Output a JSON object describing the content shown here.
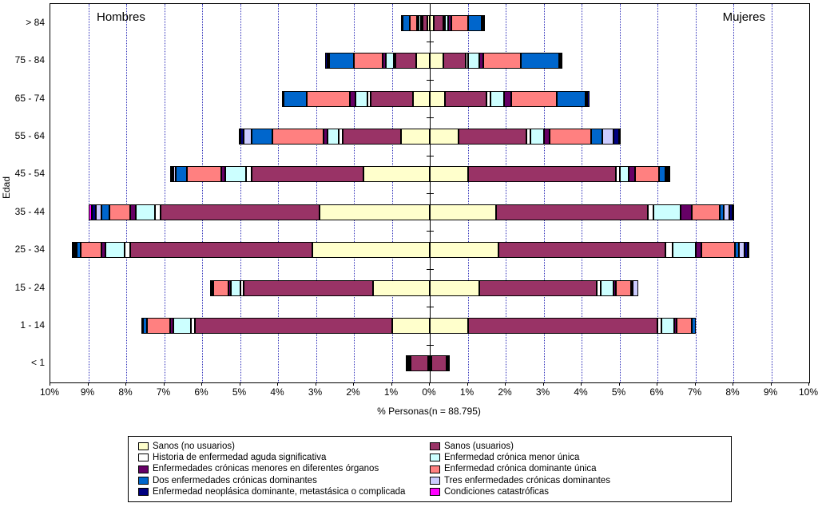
{
  "chart_data": {
    "type": "bar",
    "subtype": "population-pyramid-stacked-horizontal",
    "title": "",
    "xlabel": "% Personas(n = 88.795)",
    "ylabel": "Edad",
    "left_group": "Hombres",
    "right_group": "Mujeres",
    "x_axis": {
      "min_pct": 0,
      "max_pct": 10,
      "tick_step_pct": 1,
      "tick_labels": [
        "10%",
        "9%",
        "8%",
        "7%",
        "6%",
        "5%",
        "4%",
        "3%",
        "2%",
        "1%",
        "0%",
        "1%",
        "2%",
        "3%",
        "4%",
        "5%",
        "6%",
        "7%",
        "8%",
        "9%",
        "10%"
      ]
    },
    "age_groups": [
      "> 84",
      "75 - 84",
      "65 - 74",
      "55 - 64",
      "45 - 54",
      "35 - 44",
      "25 - 34",
      "15 - 24",
      "1 - 14",
      "< 1"
    ],
    "values_unit": "percent of persons (estimated from chart)",
    "grid": {
      "vertical_gridlines": "dotted",
      "gridline_color": "#3333bb",
      "center_axis_color": "#000000"
    },
    "series": [
      {
        "name": "Sanos (no usuarios)",
        "color": "#FFFFCC",
        "hombres": [
          0.07,
          0.35,
          0.45,
          0.75,
          1.75,
          2.9,
          3.1,
          1.5,
          1.0,
          0.05
        ],
        "mujeres": [
          0.1,
          0.35,
          0.4,
          0.75,
          1.0,
          1.75,
          1.8,
          1.3,
          1.0,
          0.05
        ]
      },
      {
        "name": "Sanos (usuarios)",
        "color": "#993366",
        "hombres": [
          0.13,
          0.55,
          1.1,
          1.55,
          2.95,
          4.2,
          4.8,
          3.4,
          5.2,
          0.45
        ],
        "mujeres": [
          0.25,
          0.6,
          1.1,
          1.8,
          3.9,
          4.0,
          4.4,
          3.1,
          5.0,
          0.4
        ]
      },
      {
        "name": "Historia de enfermedad aguda significativa",
        "color": "#FFFFFF",
        "hombres": [
          0.02,
          0.05,
          0.1,
          0.1,
          0.15,
          0.15,
          0.15,
          0.1,
          0.1,
          0.02
        ],
        "mujeres": [
          0.03,
          0.05,
          0.1,
          0.1,
          0.1,
          0.15,
          0.2,
          0.1,
          0.1,
          0.02
        ]
      },
      {
        "name": "Enfermedad crónica menor única",
        "color": "#CCFFFF",
        "hombres": [
          0.05,
          0.2,
          0.3,
          0.3,
          0.55,
          0.5,
          0.5,
          0.25,
          0.45,
          0.05
        ],
        "mujeres": [
          0.1,
          0.3,
          0.35,
          0.35,
          0.25,
          0.7,
          0.6,
          0.35,
          0.35,
          0.03
        ]
      },
      {
        "name": "Enfermedades crónicas menores en diferentes órganos",
        "color": "#660066",
        "hombres": [
          0.03,
          0.1,
          0.15,
          0.1,
          0.1,
          0.15,
          0.1,
          0.05,
          0.1,
          0.0
        ],
        "mujeres": [
          0.07,
          0.1,
          0.2,
          0.15,
          0.15,
          0.3,
          0.15,
          0.05,
          0.05,
          0.0
        ]
      },
      {
        "name": "Enfermedad crónica dominante única",
        "color": "#FF8080",
        "hombres": [
          0.2,
          0.75,
          1.15,
          1.35,
          0.9,
          0.55,
          0.55,
          0.4,
          0.6,
          0.05
        ],
        "mujeres": [
          0.45,
          1.0,
          1.2,
          1.1,
          0.65,
          0.75,
          0.9,
          0.4,
          0.4,
          0.0
        ]
      },
      {
        "name": "Dos enfermedades crónicas dominantes",
        "color": "#0066CC",
        "hombres": [
          0.18,
          0.65,
          0.6,
          0.55,
          0.3,
          0.2,
          0.1,
          0.05,
          0.1,
          0.0
        ],
        "mujeres": [
          0.35,
          1.0,
          0.75,
          0.3,
          0.15,
          0.1,
          0.1,
          0.05,
          0.1,
          0.0
        ]
      },
      {
        "name": "Tres enfermedades crónicas dominantes",
        "color": "#CCCCFF",
        "hombres": [
          0.02,
          0.05,
          0.0,
          0.2,
          0.05,
          0.15,
          0.05,
          0.05,
          0.05,
          0.0
        ],
        "mujeres": [
          0.03,
          0.05,
          0.05,
          0.3,
          0.05,
          0.15,
          0.15,
          0.15,
          0.0,
          0.0
        ]
      },
      {
        "name": "Enfermedad neoplásica dominante, metastásica o complicada",
        "color": "#000080",
        "hombres": [
          0.0,
          0.05,
          0.05,
          0.08,
          0.03,
          0.1,
          0.03,
          0.0,
          0.0,
          0.0
        ],
        "mujeres": [
          0.02,
          0.05,
          0.05,
          0.13,
          0.03,
          0.08,
          0.08,
          0.0,
          0.0,
          0.0
        ]
      },
      {
        "name": "Condiciones catastróficas",
        "color": "#FF00FF",
        "hombres": [
          0.0,
          0.0,
          0.0,
          0.02,
          0.02,
          0.1,
          0.02,
          0.0,
          0.0,
          0.0
        ],
        "mujeres": [
          0.0,
          0.0,
          0.0,
          0.02,
          0.02,
          0.02,
          0.02,
          0.0,
          0.0,
          0.0
        ]
      }
    ],
    "legend_columns": [
      [
        "Sanos (no usuarios)",
        "Historia de enfermedad aguda significativa",
        "Enfermedades crónicas menores en diferentes órganos",
        "Dos enfermedades crónicas dominantes",
        "Enfermedad neoplásica dominante, metastásica o complicada"
      ],
      [
        "Sanos (usuarios)",
        "Enfermedad crónica menor única",
        "Enfermedad crónica dominante única",
        "Tres enfermedades crónicas dominantes",
        "Condiciones catastróficas"
      ]
    ]
  }
}
